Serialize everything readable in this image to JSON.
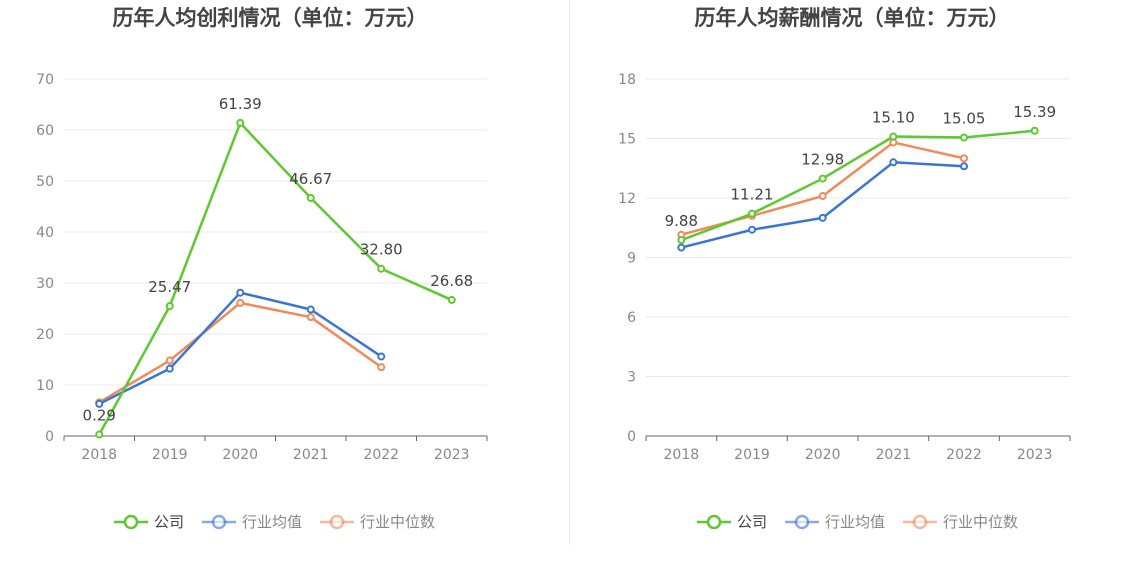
{
  "chart_data": [
    {
      "type": "line",
      "title": "历年人均创利情况（单位：万元）",
      "categories": [
        "2018",
        "2019",
        "2020",
        "2021",
        "2022",
        "2023"
      ],
      "ylim": [
        0,
        70
      ],
      "yticks": [
        "0",
        "10",
        "20",
        "30",
        "40",
        "50",
        "60",
        "70"
      ],
      "grid": true,
      "legend_position": "bottom",
      "series": [
        {
          "name": "公司",
          "color": "#5dc82f",
          "values": [
            0.29,
            25.47,
            61.39,
            46.67,
            32.8,
            26.68
          ],
          "labels": [
            "0.29",
            "25.47",
            "61.39",
            "46.67",
            "32.80",
            "26.68"
          ]
        },
        {
          "name": "行业均值",
          "color": "#3a75d6",
          "values": [
            6.3,
            13.2,
            28.1,
            24.8,
            15.6,
            null
          ],
          "labels": []
        },
        {
          "name": "行业中位数",
          "color": "#f08a5a",
          "values": [
            6.6,
            14.8,
            26.1,
            23.3,
            13.5,
            null
          ],
          "labels": []
        }
      ]
    },
    {
      "type": "line",
      "title": "历年人均薪酬情况（单位：万元）",
      "categories": [
        "2018",
        "2019",
        "2020",
        "2021",
        "2022",
        "2023"
      ],
      "ylim": [
        0,
        18
      ],
      "yticks": [
        "0",
        "3",
        "6",
        "9",
        "12",
        "15",
        "18"
      ],
      "grid": true,
      "legend_position": "bottom",
      "series": [
        {
          "name": "公司",
          "color": "#5dc82f",
          "values": [
            9.88,
            11.21,
            12.98,
            15.1,
            15.05,
            15.39
          ],
          "labels": [
            "9.88",
            "11.21",
            "12.98",
            "15.10",
            "15.05",
            "15.39"
          ]
        },
        {
          "name": "行业均值",
          "color": "#3a75d6",
          "values": [
            9.5,
            10.4,
            11.0,
            13.8,
            13.6,
            null
          ],
          "labels": []
        },
        {
          "name": "行业中位数",
          "color": "#f08a5a",
          "values": [
            10.15,
            11.1,
            12.1,
            14.8,
            14.0,
            null
          ],
          "labels": []
        }
      ]
    }
  ]
}
